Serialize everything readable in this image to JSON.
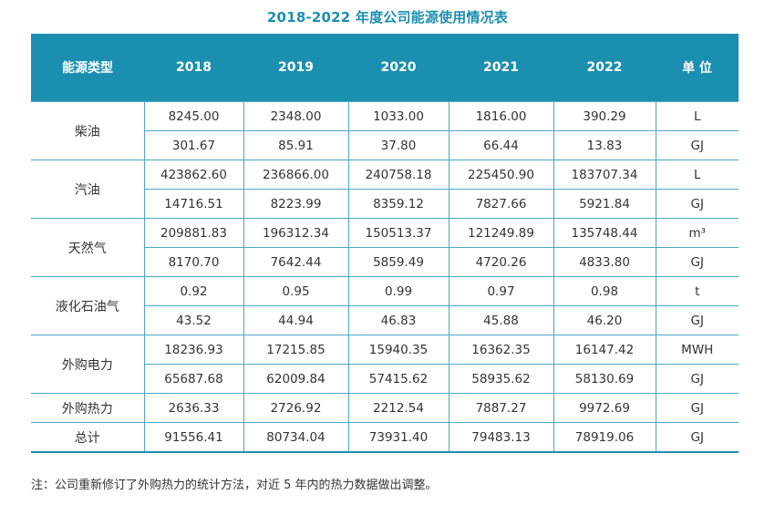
{
  "title": "2018-2022 年度公司能源使用情况表",
  "headers": [
    "能源类型",
    "2018",
    "2019",
    "2020",
    "2021",
    "2022",
    "单 位"
  ],
  "groups": [
    {
      "category": "柴油",
      "rows": [
        {
          "values": [
            "8245.00",
            "2348.00",
            "1033.00",
            "1816.00",
            "390.29"
          ],
          "unit": "L"
        },
        {
          "values": [
            "301.67",
            "85.91",
            "37.80",
            "66.44",
            "13.83"
          ],
          "unit": "GJ"
        }
      ]
    },
    {
      "category": "汽油",
      "rows": [
        {
          "values": [
            "423862.60",
            "236866.00",
            "240758.18",
            "225450.90",
            "183707.34"
          ],
          "unit": "L"
        },
        {
          "values": [
            "14716.51",
            "8223.99",
            "8359.12",
            "7827.66",
            "5921.84"
          ],
          "unit": "GJ"
        }
      ]
    },
    {
      "category": "天然气",
      "rows": [
        {
          "values": [
            "209881.83",
            "196312.34",
            "150513.37",
            "121249.89",
            "135748.44"
          ],
          "unit": "m³"
        },
        {
          "values": [
            "8170.70",
            "7642.44",
            "5859.49",
            "4720.26",
            "4833.80"
          ],
          "unit": "GJ"
        }
      ]
    },
    {
      "category": "液化石油气",
      "rows": [
        {
          "values": [
            "0.92",
            "0.95",
            "0.99",
            "0.97",
            "0.98"
          ],
          "unit": "t"
        },
        {
          "values": [
            "43.52",
            "44.94",
            "46.83",
            "45.88",
            "46.20"
          ],
          "unit": "GJ"
        }
      ]
    },
    {
      "category": "外购电力",
      "rows": [
        {
          "values": [
            "18236.93",
            "17215.85",
            "15940.35",
            "16362.35",
            "16147.42"
          ],
          "unit": "MWH"
        },
        {
          "values": [
            "65687.68",
            "62009.84",
            "57415.62",
            "58935.62",
            "58130.69"
          ],
          "unit": "GJ"
        }
      ]
    },
    {
      "category": "外购热力",
      "rows": [
        {
          "values": [
            "2636.33",
            "2726.92",
            "2212.54",
            "7887.27",
            "9972.69"
          ],
          "unit": "GJ"
        }
      ]
    },
    {
      "category": "总计",
      "rows": [
        {
          "values": [
            "91556.41",
            "80734.04",
            "73931.40",
            "79483.13",
            "78919.06"
          ],
          "unit": "GJ"
        }
      ]
    }
  ],
  "note": "注：公司重新修订了外购热力的统计方法，对近 5 年内的热力数据做出调整。"
}
